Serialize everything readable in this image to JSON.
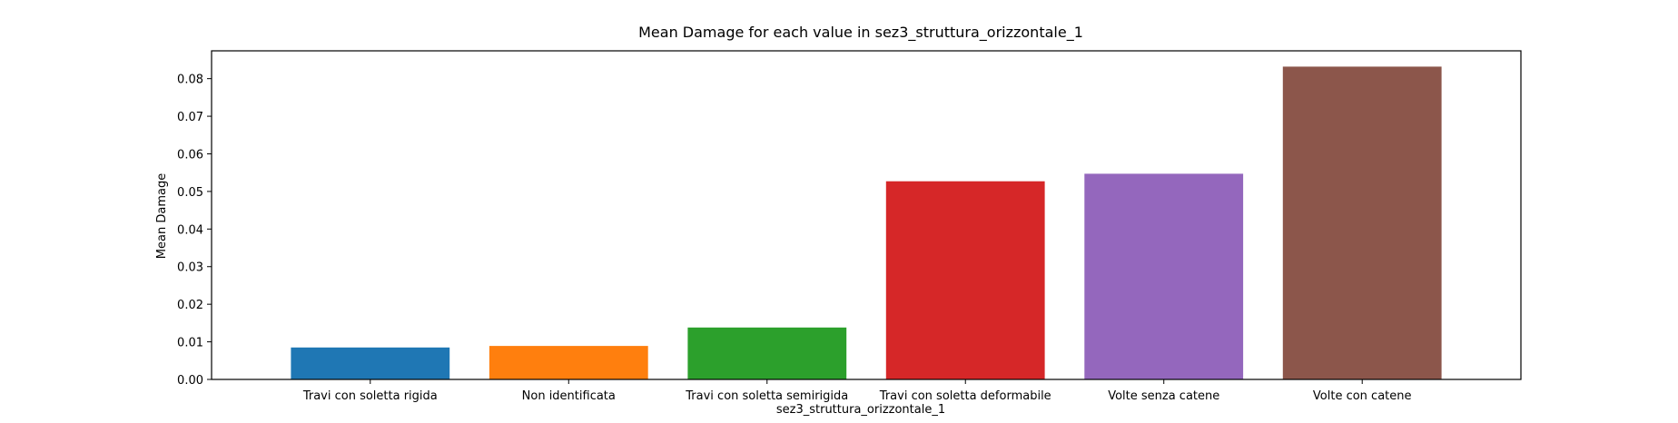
{
  "chart_data": {
    "type": "bar",
    "title": "Mean Damage for each value in sez3_struttura_orizzontale_1",
    "xlabel": "sez3_struttura_orizzontale_1",
    "ylabel": "Mean Damage",
    "categories": [
      "Travi con soletta rigida",
      "Non identificata",
      "Travi con soletta semirigida",
      "Travi con soletta deformabile",
      "Volte senza catene",
      "Volte con catene"
    ],
    "values": [
      0.0085,
      0.0089,
      0.0138,
      0.0527,
      0.0547,
      0.0832
    ],
    "colors": [
      "#1f77b4",
      "#ff7f0e",
      "#2ca02c",
      "#d62728",
      "#9467bd",
      "#8c564b"
    ],
    "yticks": [
      "0.00",
      "0.01",
      "0.02",
      "0.03",
      "0.04",
      "0.05",
      "0.06",
      "0.07",
      "0.08"
    ],
    "ylim": [
      0,
      0.0874
    ],
    "grid": false,
    "legend": "none"
  }
}
